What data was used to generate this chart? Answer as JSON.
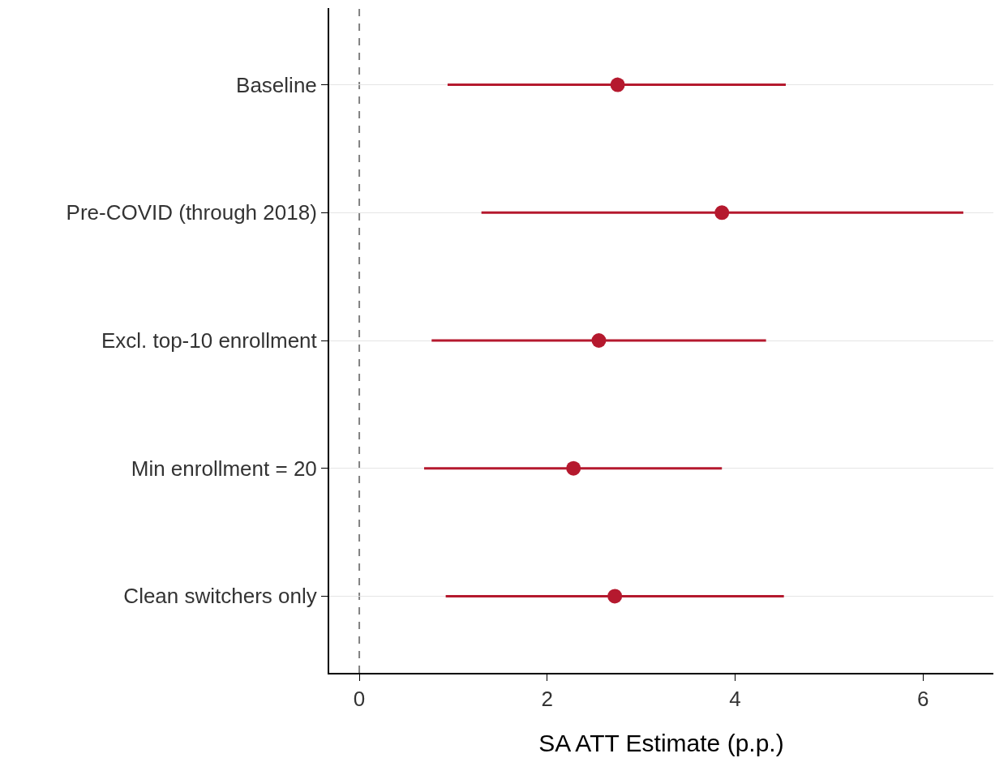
{
  "chart_data": {
    "type": "scatter",
    "orientation": "horizontal",
    "xlabel": "SA ATT Estimate (p.p.)",
    "categories": [
      "Baseline",
      "Pre-COVID (through 2018)",
      "Excl. top-10 enrollment",
      "Min enrollment = 20",
      "Clean switchers only"
    ],
    "series": [
      {
        "color": "#b5192e",
        "values": [
          2.75,
          3.86,
          2.55,
          2.28,
          2.72
        ],
        "errors": [
          [
            0.94,
            4.54
          ],
          [
            1.3,
            6.43
          ],
          [
            0.77,
            4.33
          ],
          [
            0.69,
            3.86
          ],
          [
            0.92,
            4.52
          ]
        ]
      }
    ],
    "xlim": [
      -0.32,
      6.75
    ],
    "xticks": [
      0,
      2,
      4,
      6
    ],
    "ref_lines": [
      {
        "axis": "x",
        "value": 0,
        "color": "#808080",
        "line_style": "dashed"
      }
    ],
    "grid": "y",
    "marker": "circle"
  }
}
